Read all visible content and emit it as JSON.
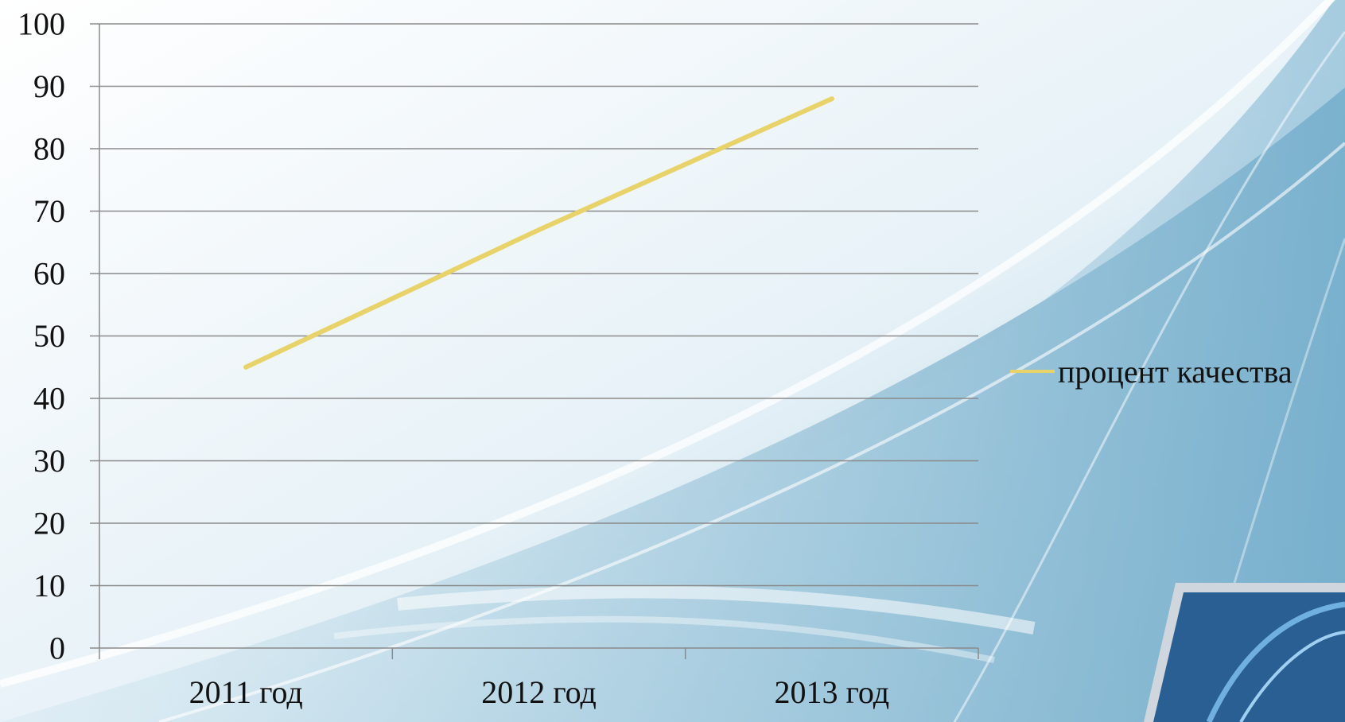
{
  "chart_data": {
    "type": "line",
    "categories": [
      "2011 год",
      "2012 год",
      "2013 год"
    ],
    "series": [
      {
        "name": "процент качества",
        "values": [
          45,
          67,
          88
        ],
        "color": "#e8d36a"
      }
    ],
    "ylim": [
      0,
      100
    ],
    "yticks": [
      0,
      10,
      20,
      30,
      40,
      50,
      60,
      70,
      80,
      90,
      100
    ],
    "grid": true,
    "legend_position": "right",
    "title": "",
    "xlabel": "",
    "ylabel": ""
  }
}
